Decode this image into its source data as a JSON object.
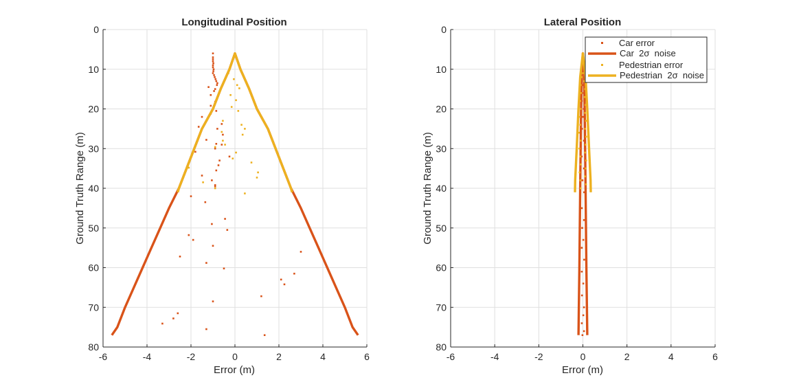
{
  "figure": {
    "background": "#ffffff"
  },
  "colors": {
    "car": "#d95319",
    "pedestrian": "#edb120"
  },
  "chart_data": [
    {
      "type": "scatter",
      "title": "Longitudinal Position",
      "xlabel": "Error (m)",
      "ylabel": "Ground Truth Range (m)",
      "xlim": [
        -6,
        6
      ],
      "ylim": [
        0,
        80
      ],
      "y_reversed": true,
      "grid": true,
      "x_ticks": [
        "-6",
        "-4",
        "-2",
        "0",
        "2",
        "4",
        "6"
      ],
      "y_ticks": [
        "0",
        "10",
        "20",
        "30",
        "40",
        "50",
        "60",
        "70",
        "80"
      ],
      "series": [
        {
          "name": "Car error",
          "kind": "points",
          "color": "#d95319",
          "points": [
            [
              -1.0,
              6
            ],
            [
              -1.0,
              7
            ],
            [
              -1.0,
              7.5
            ],
            [
              -1.0,
              8
            ],
            [
              -0.98,
              8.5
            ],
            [
              -1.0,
              9
            ],
            [
              -1.0,
              9.5
            ],
            [
              -0.97,
              10
            ],
            [
              -0.98,
              10.5
            ],
            [
              -1.0,
              11
            ],
            [
              -0.95,
              11.5
            ],
            [
              -0.92,
              12
            ],
            [
              -0.88,
              12.5
            ],
            [
              -0.85,
              13
            ],
            [
              -0.8,
              13.5
            ],
            [
              -0.82,
              14
            ],
            [
              -1.2,
              14.5
            ],
            [
              -0.9,
              15
            ],
            [
              -0.95,
              15.5
            ],
            [
              -1.1,
              16.5
            ],
            [
              -0.9,
              18.2
            ],
            [
              -1.1,
              19.2
            ],
            [
              -0.85,
              20.5
            ],
            [
              -1.1,
              21.2
            ],
            [
              -1.5,
              22
            ],
            [
              -0.6,
              23.8
            ],
            [
              -1.65,
              24.5
            ],
            [
              -0.8,
              25
            ],
            [
              -0.55,
              26.5
            ],
            [
              -1.3,
              27.8
            ],
            [
              -0.85,
              28.8
            ],
            [
              -0.6,
              29
            ],
            [
              -0.9,
              30
            ],
            [
              -1.8,
              30.8
            ],
            [
              -0.25,
              32
            ],
            [
              -0.7,
              33
            ],
            [
              -0.75,
              34.2
            ],
            [
              -0.85,
              35.5
            ],
            [
              -1.5,
              36.8
            ],
            [
              -1.05,
              38
            ],
            [
              -0.9,
              39.2
            ],
            [
              -0.9,
              39.5
            ],
            [
              -2.0,
              42
            ],
            [
              -1.35,
              43.5
            ],
            [
              -3.1,
              46.2
            ],
            [
              -0.45,
              47.7
            ],
            [
              -1.05,
              49
            ],
            [
              -0.35,
              50.5
            ],
            [
              -2.1,
              51.8
            ],
            [
              -1.9,
              53
            ],
            [
              -1.0,
              54.5
            ],
            [
              -2.5,
              57.2
            ],
            [
              -1.3,
              58.8
            ],
            [
              -0.5,
              60.2
            ],
            [
              2.1,
              63
            ],
            [
              3.0,
              56
            ],
            [
              2.7,
              61.5
            ],
            [
              2.25,
              64.2
            ],
            [
              1.2,
              67.2
            ],
            [
              -1.0,
              68.5
            ],
            [
              -2.6,
              71.5
            ],
            [
              -2.8,
              72.8
            ],
            [
              -3.3,
              74.1
            ],
            [
              -1.3,
              75.5
            ],
            [
              1.35,
              77
            ]
          ]
        },
        {
          "name": "Car 2σ noise",
          "kind": "line",
          "color": "#d95319",
          "lineWidth": 3.4,
          "mirror": true,
          "points": [
            [
              0,
              6
            ],
            [
              0.25,
              10
            ],
            [
              0.65,
              15
            ],
            [
              1.0,
              20
            ],
            [
              1.5,
              25
            ],
            [
              1.85,
              30
            ],
            [
              2.2,
              35
            ],
            [
              2.55,
              40
            ],
            [
              3.0,
              45
            ],
            [
              3.4,
              50
            ],
            [
              3.8,
              55
            ],
            [
              4.2,
              60
            ],
            [
              4.6,
              65
            ],
            [
              5.0,
              70
            ],
            [
              5.35,
              75
            ],
            [
              5.6,
              77
            ]
          ]
        },
        {
          "name": "Pedestrian error",
          "kind": "points",
          "color": "#edb120",
          "points": [
            [
              -0.3,
              11
            ],
            [
              -0.05,
              12.5
            ],
            [
              0.1,
              14
            ],
            [
              0.2,
              14.8
            ],
            [
              -0.2,
              16.5
            ],
            [
              0.05,
              17.8
            ],
            [
              -0.15,
              19.5
            ],
            [
              0.15,
              20.5
            ],
            [
              -0.55,
              23
            ],
            [
              0.3,
              24
            ],
            [
              0.45,
              25
            ],
            [
              -0.6,
              25.8
            ],
            [
              0.35,
              26.5
            ],
            [
              -0.55,
              28
            ],
            [
              -0.45,
              29
            ],
            [
              -0.9,
              29.6
            ],
            [
              0.05,
              31
            ],
            [
              -0.1,
              32.5
            ],
            [
              0.75,
              33.5
            ],
            [
              -2.1,
              34.8
            ],
            [
              1.05,
              36
            ],
            [
              1.0,
              37.3
            ],
            [
              -1.45,
              38.5
            ],
            [
              -0.9,
              40
            ],
            [
              0.45,
              41.3
            ]
          ]
        },
        {
          "name": "Pedestrian 2σ noise",
          "kind": "line",
          "color": "#edb120",
          "lineWidth": 3.4,
          "mirror": true,
          "points": [
            [
              0,
              6
            ],
            [
              0.25,
              10
            ],
            [
              0.65,
              15
            ],
            [
              1.0,
              20
            ],
            [
              1.5,
              25
            ],
            [
              1.85,
              30
            ],
            [
              2.2,
              35
            ],
            [
              2.55,
              40
            ],
            [
              2.6,
              41
            ]
          ]
        }
      ]
    },
    {
      "type": "scatter",
      "title": "Lateral Position",
      "xlabel": "Error (m)",
      "ylabel": "Ground Truth Range (m)",
      "xlim": [
        -6,
        6
      ],
      "ylim": [
        0,
        80
      ],
      "y_reversed": true,
      "grid": true,
      "legend_position": "top-right",
      "x_ticks": [
        "-6",
        "-4",
        "-2",
        "0",
        "2",
        "4",
        "6"
      ],
      "y_ticks": [
        "0",
        "10",
        "20",
        "30",
        "40",
        "50",
        "60",
        "70",
        "80"
      ],
      "series": [
        {
          "name": "Car error",
          "kind": "points",
          "color": "#d95319",
          "points": [
            [
              0,
              6
            ],
            [
              0,
              7
            ],
            [
              -0.02,
              8
            ],
            [
              0.02,
              9
            ],
            [
              0,
              10
            ],
            [
              -0.03,
              12
            ],
            [
              0.02,
              14
            ],
            [
              0.03,
              16
            ],
            [
              -0.05,
              18
            ],
            [
              0.04,
              20
            ],
            [
              0,
              22
            ],
            [
              -0.04,
              25
            ],
            [
              0.05,
              28
            ],
            [
              -0.06,
              32
            ],
            [
              0.05,
              35
            ],
            [
              -0.02,
              38
            ],
            [
              0.06,
              41
            ],
            [
              -0.05,
              45
            ],
            [
              0.05,
              48
            ],
            [
              -0.03,
              50
            ],
            [
              0.02,
              53
            ],
            [
              -0.05,
              55
            ],
            [
              0.06,
              58
            ],
            [
              -0.05,
              61
            ],
            [
              0.02,
              64
            ],
            [
              -0.04,
              67
            ],
            [
              0.05,
              70
            ],
            [
              0.02,
              72
            ],
            [
              -0.05,
              74
            ],
            [
              0.05,
              76
            ],
            [
              -0.02,
              77
            ]
          ]
        },
        {
          "name": "Car 2σ noise",
          "kind": "line",
          "color": "#d95319",
          "lineWidth": 3.4,
          "mirror": true,
          "points": [
            [
              0,
              6
            ],
            [
              0.05,
              10
            ],
            [
              0.08,
              20
            ],
            [
              0.12,
              40
            ],
            [
              0.16,
              60
            ],
            [
              0.2,
              77
            ]
          ]
        },
        {
          "name": "Pedestrian error",
          "kind": "points",
          "color": "#edb120",
          "points": [
            [
              0,
              11
            ],
            [
              -0.05,
              12
            ],
            [
              0.06,
              13
            ],
            [
              -0.1,
              14
            ],
            [
              0.1,
              15
            ],
            [
              -0.08,
              16
            ],
            [
              0.08,
              17
            ],
            [
              -0.12,
              18
            ],
            [
              0.12,
              19
            ],
            [
              -0.1,
              20
            ],
            [
              0.1,
              21
            ],
            [
              -0.15,
              22
            ],
            [
              0.14,
              23
            ],
            [
              -0.12,
              24
            ],
            [
              0.1,
              25
            ],
            [
              -0.18,
              26
            ],
            [
              0.15,
              27
            ],
            [
              -0.1,
              28
            ],
            [
              0.12,
              29
            ],
            [
              -0.16,
              30
            ],
            [
              0.1,
              31
            ],
            [
              -0.12,
              32
            ],
            [
              0.15,
              33
            ],
            [
              -0.1,
              34
            ],
            [
              0.12,
              35
            ],
            [
              -0.15,
              36
            ],
            [
              0.1,
              37
            ],
            [
              -0.12,
              38
            ],
            [
              0.14,
              39
            ],
            [
              -0.1,
              40
            ]
          ]
        },
        {
          "name": "Pedestrian 2σ noise",
          "kind": "line",
          "color": "#edb120",
          "lineWidth": 3.4,
          "mirror": true,
          "points": [
            [
              0,
              6
            ],
            [
              0.12,
              12
            ],
            [
              0.2,
              20
            ],
            [
              0.28,
              30
            ],
            [
              0.35,
              38
            ],
            [
              0.36,
              41
            ]
          ]
        }
      ],
      "legend": [
        {
          "text": "Car error",
          "series": 0
        },
        {
          "text": "Car  2σ  noise",
          "series": 1
        },
        {
          "text": "Pedestrian error",
          "series": 2
        },
        {
          "text": "Pedestrian  2σ  noise",
          "series": 3
        }
      ]
    }
  ]
}
